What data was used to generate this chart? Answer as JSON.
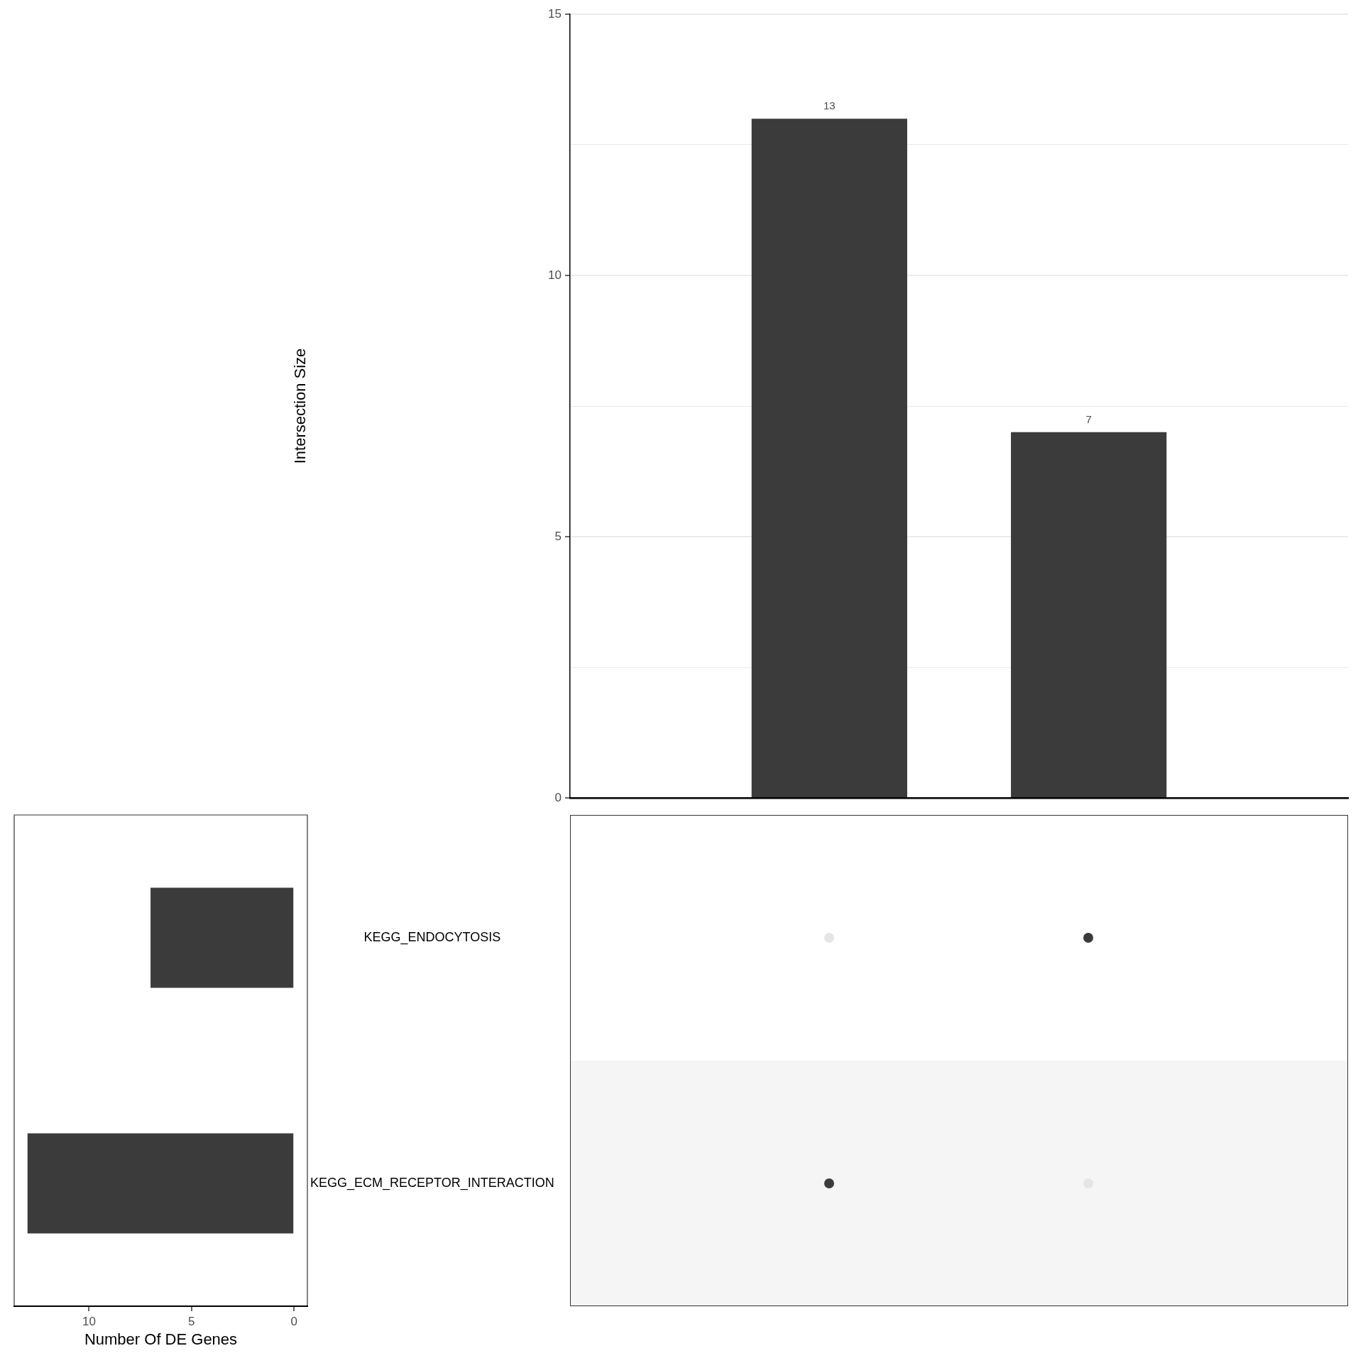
{
  "chart_data": [
    {
      "type": "bar",
      "categories": [
        null,
        null
      ],
      "values": [
        13,
        7
      ],
      "color": "#3b3b3b",
      "ylabel": "Intersection Size",
      "ylim": [
        0,
        15
      ],
      "yticks": [
        0,
        {
          "value": 2.5,
          "label": null
        },
        5,
        {
          "value": 7.5,
          "label": null
        },
        10,
        {
          "value": 12.5,
          "label": null
        },
        15
      ],
      "grid": "y",
      "data_labels": true,
      "tick_labels": "y"
    },
    {
      "type": "bar",
      "orientation": "horizontal",
      "categories": [
        "KEGG_ENDOCYTOSIS",
        "KEGG_ECM_RECEPTOR_INTERACTION"
      ],
      "values": [
        7,
        13
      ],
      "color": "#3b3b3b",
      "xlabel": "Number Of DE Genes",
      "xlim": [
        13.65,
        -0.65
      ],
      "xticks": [
        10,
        5,
        0
      ]
    }
  ]
}
